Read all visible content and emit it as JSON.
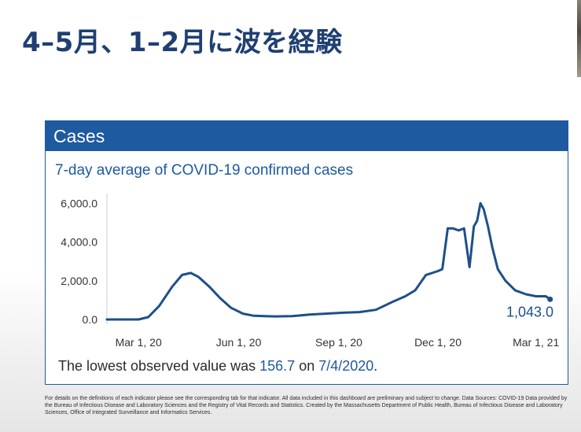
{
  "slide": {
    "title": "4–5月、1–2月に波を経験"
  },
  "panel": {
    "header": "Cases",
    "subtitle": "7-day average of COVID-19 confirmed cases",
    "accent_color": "#1e5aa0",
    "line_color": "#1e4f8a"
  },
  "chart_data": {
    "type": "line",
    "title": "7-day average of COVID-19 confirmed cases",
    "xlabel": "",
    "ylabel": "",
    "x_tick_labels": [
      "Mar 1, 20",
      "Jun 1, 20",
      "Sep 1, 20",
      "Dec 1, 20",
      "Mar 1, 21"
    ],
    "y_tick_labels": [
      "0.0",
      "2,000.0",
      "4,000.0",
      "6,000.0"
    ],
    "ylim": [
      0,
      6500
    ],
    "xlim": [
      "2020-02-01",
      "2021-03-20"
    ],
    "grid": false,
    "end_label": "1,043.0",
    "series": [
      {
        "x": [
          "2020-02-01",
          "2020-03-01",
          "2020-03-10",
          "2020-03-20",
          "2020-04-01",
          "2020-04-10",
          "2020-04-18",
          "2020-04-25",
          "2020-05-05",
          "2020-05-15",
          "2020-05-25",
          "2020-06-05",
          "2020-06-15",
          "2020-06-25",
          "2020-07-04",
          "2020-07-20",
          "2020-08-05",
          "2020-08-20",
          "2020-09-05",
          "2020-09-20",
          "2020-10-05",
          "2020-10-20",
          "2020-11-01",
          "2020-11-10",
          "2020-11-20",
          "2020-12-01",
          "2020-12-05",
          "2020-12-10",
          "2020-12-15",
          "2020-12-20",
          "2020-12-25",
          "2020-12-30",
          "2021-01-03",
          "2021-01-06",
          "2021-01-09",
          "2021-01-12",
          "2021-01-16",
          "2021-01-20",
          "2021-01-25",
          "2021-02-01",
          "2021-02-10",
          "2021-02-20",
          "2021-03-01",
          "2021-03-10",
          "2021-03-14"
        ],
        "values": [
          0,
          0,
          120,
          700,
          1700,
          2300,
          2400,
          2200,
          1700,
          1100,
          600,
          300,
          190,
          170,
          157,
          170,
          250,
          300,
          350,
          380,
          500,
          900,
          1200,
          1500,
          2300,
          2500,
          2600,
          4700,
          4700,
          4600,
          4700,
          2700,
          4800,
          5100,
          6000,
          5700,
          4800,
          3700,
          2600,
          2000,
          1500,
          1300,
          1200,
          1200,
          1043
        ]
      }
    ]
  },
  "summary": {
    "prefix": "The lowest observed value was ",
    "value": "156.7",
    "mid": " on ",
    "date": "7/4/2020",
    "suffix": "."
  },
  "footnote": "For details on the definitions of each indicator please see the corresponding tab for that indicator. All data included in this dashboard are preliminary and subject to change. Data Sources: COVID-19 Data provided by the Bureau of Infectious Disease and Laboratory Sciences and the Registry of Vital Records and Statistics. Created by the Massachusetts Department of Public Health, Bureau of Infectious Disease and Laboratory Sciences, Office of Integrated Surveillance and Informatics Services."
}
